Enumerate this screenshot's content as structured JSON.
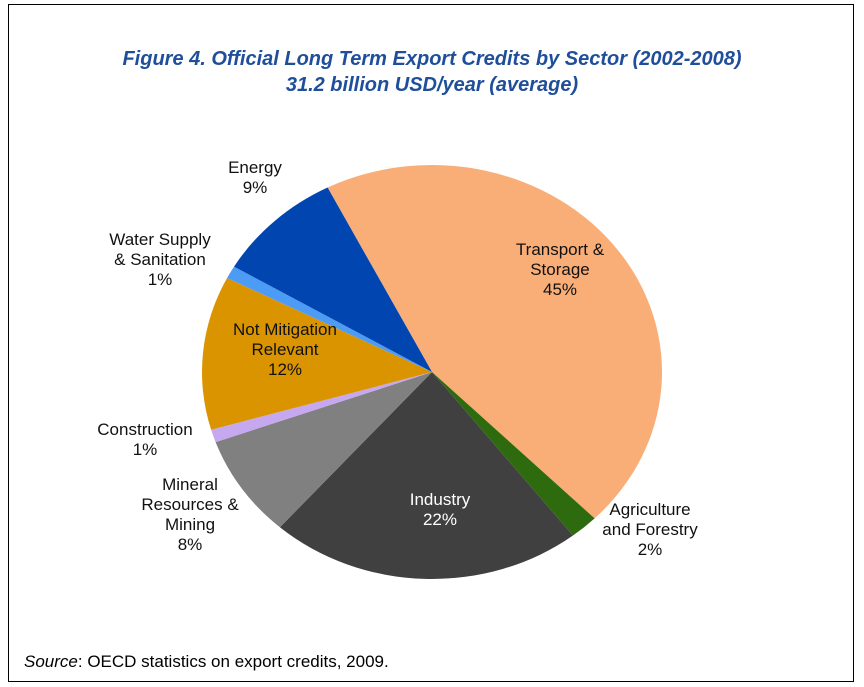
{
  "chart_data": {
    "type": "pie",
    "title": "Figure 4. Official Long Term Export Credits by Sector (2002-2008)",
    "subtitle": "31.2 billion USD/year (average)",
    "categories": [
      "Transport &\nStorage",
      "Agriculture\nand Forestry",
      "Industry",
      "Mineral\nResources &\nMining",
      "Construction",
      "Not Mitigation\nRelevant",
      "Water Supply\n& Sanitation",
      "Energy"
    ],
    "values": [
      45,
      2,
      22,
      8,
      1,
      12,
      1,
      9
    ],
    "value_labels": [
      "45%",
      "2%",
      "22%",
      "8%",
      "1%",
      "12%",
      "1%",
      "9%"
    ],
    "colors": [
      "#F9AE78",
      "#2E6B0F",
      "#404040",
      "#808080",
      "#C5A8F0",
      "#D99400",
      "#4C9BF5",
      "#0045B0"
    ]
  },
  "source": {
    "label": "Source",
    "text": ": OECD statistics on export credits, 2009."
  }
}
